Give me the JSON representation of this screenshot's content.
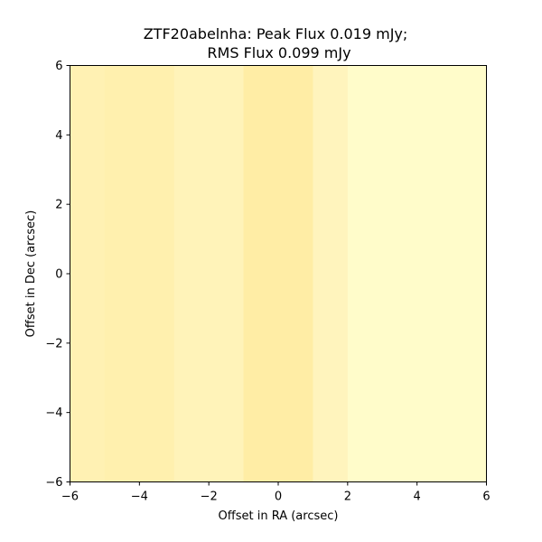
{
  "chart_data": {
    "type": "heatmap",
    "title_line1": "ZTF20abelnha: Peak Flux 0.019 mJy;",
    "title_line2": "RMS Flux 0.099 mJy",
    "xlabel": "Offset in RA (arcsec)",
    "ylabel": "Offset in Dec (arcsec)",
    "xlim": [
      -6,
      6
    ],
    "ylim": [
      -6,
      6
    ],
    "xticks": [
      -6,
      -4,
      -2,
      0,
      2,
      4,
      6
    ],
    "yticks": [
      -6,
      -4,
      -2,
      0,
      2,
      4,
      6
    ],
    "colormap": "YlOrBr",
    "columns": [
      {
        "x0": -6,
        "x1": -5,
        "color": "#fff1b3"
      },
      {
        "x0": -5,
        "x1": -3,
        "color": "#fff0ae"
      },
      {
        "x0": -3,
        "x1": -1,
        "color": "#fff3b9"
      },
      {
        "x0": -1,
        "x1": 1,
        "color": "#ffeda5"
      },
      {
        "x0": 1,
        "x1": 2,
        "color": "#fff4bd"
      },
      {
        "x0": 2,
        "x1": 6,
        "color": "#fffcca"
      }
    ]
  }
}
